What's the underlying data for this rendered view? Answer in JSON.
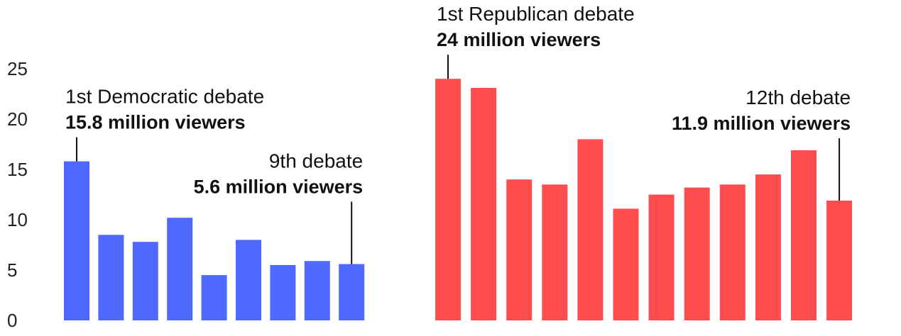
{
  "chart_data": {
    "type": "bar",
    "ylim": [
      0,
      25
    ],
    "yticks": [
      0,
      5,
      10,
      15,
      20,
      25
    ],
    "grid": false,
    "series": [
      {
        "color": "#4f68ff",
        "values": [
          15.8,
          8.5,
          7.8,
          10.2,
          4.5,
          8.0,
          5.5,
          5.9,
          5.6
        ],
        "annotations": [
          {
            "index": 0,
            "title": "1st Democratic debate",
            "value_label": "15.8 million viewers",
            "align": "start"
          },
          {
            "index": 8,
            "title": "9th debate",
            "value_label": "5.6 million viewers",
            "align": "end"
          }
        ]
      },
      {
        "color": "#ff4d4f",
        "values": [
          24.0,
          23.1,
          14.0,
          13.5,
          18.0,
          11.1,
          12.5,
          13.2,
          13.5,
          14.5,
          16.9,
          11.9
        ],
        "annotations": [
          {
            "index": 0,
            "title": "1st Republican debate",
            "value_label": "24 million viewers",
            "align": "start"
          },
          {
            "index": 11,
            "title": "12th debate",
            "value_label": "11.9 million viewers",
            "align": "end"
          }
        ]
      }
    ]
  }
}
